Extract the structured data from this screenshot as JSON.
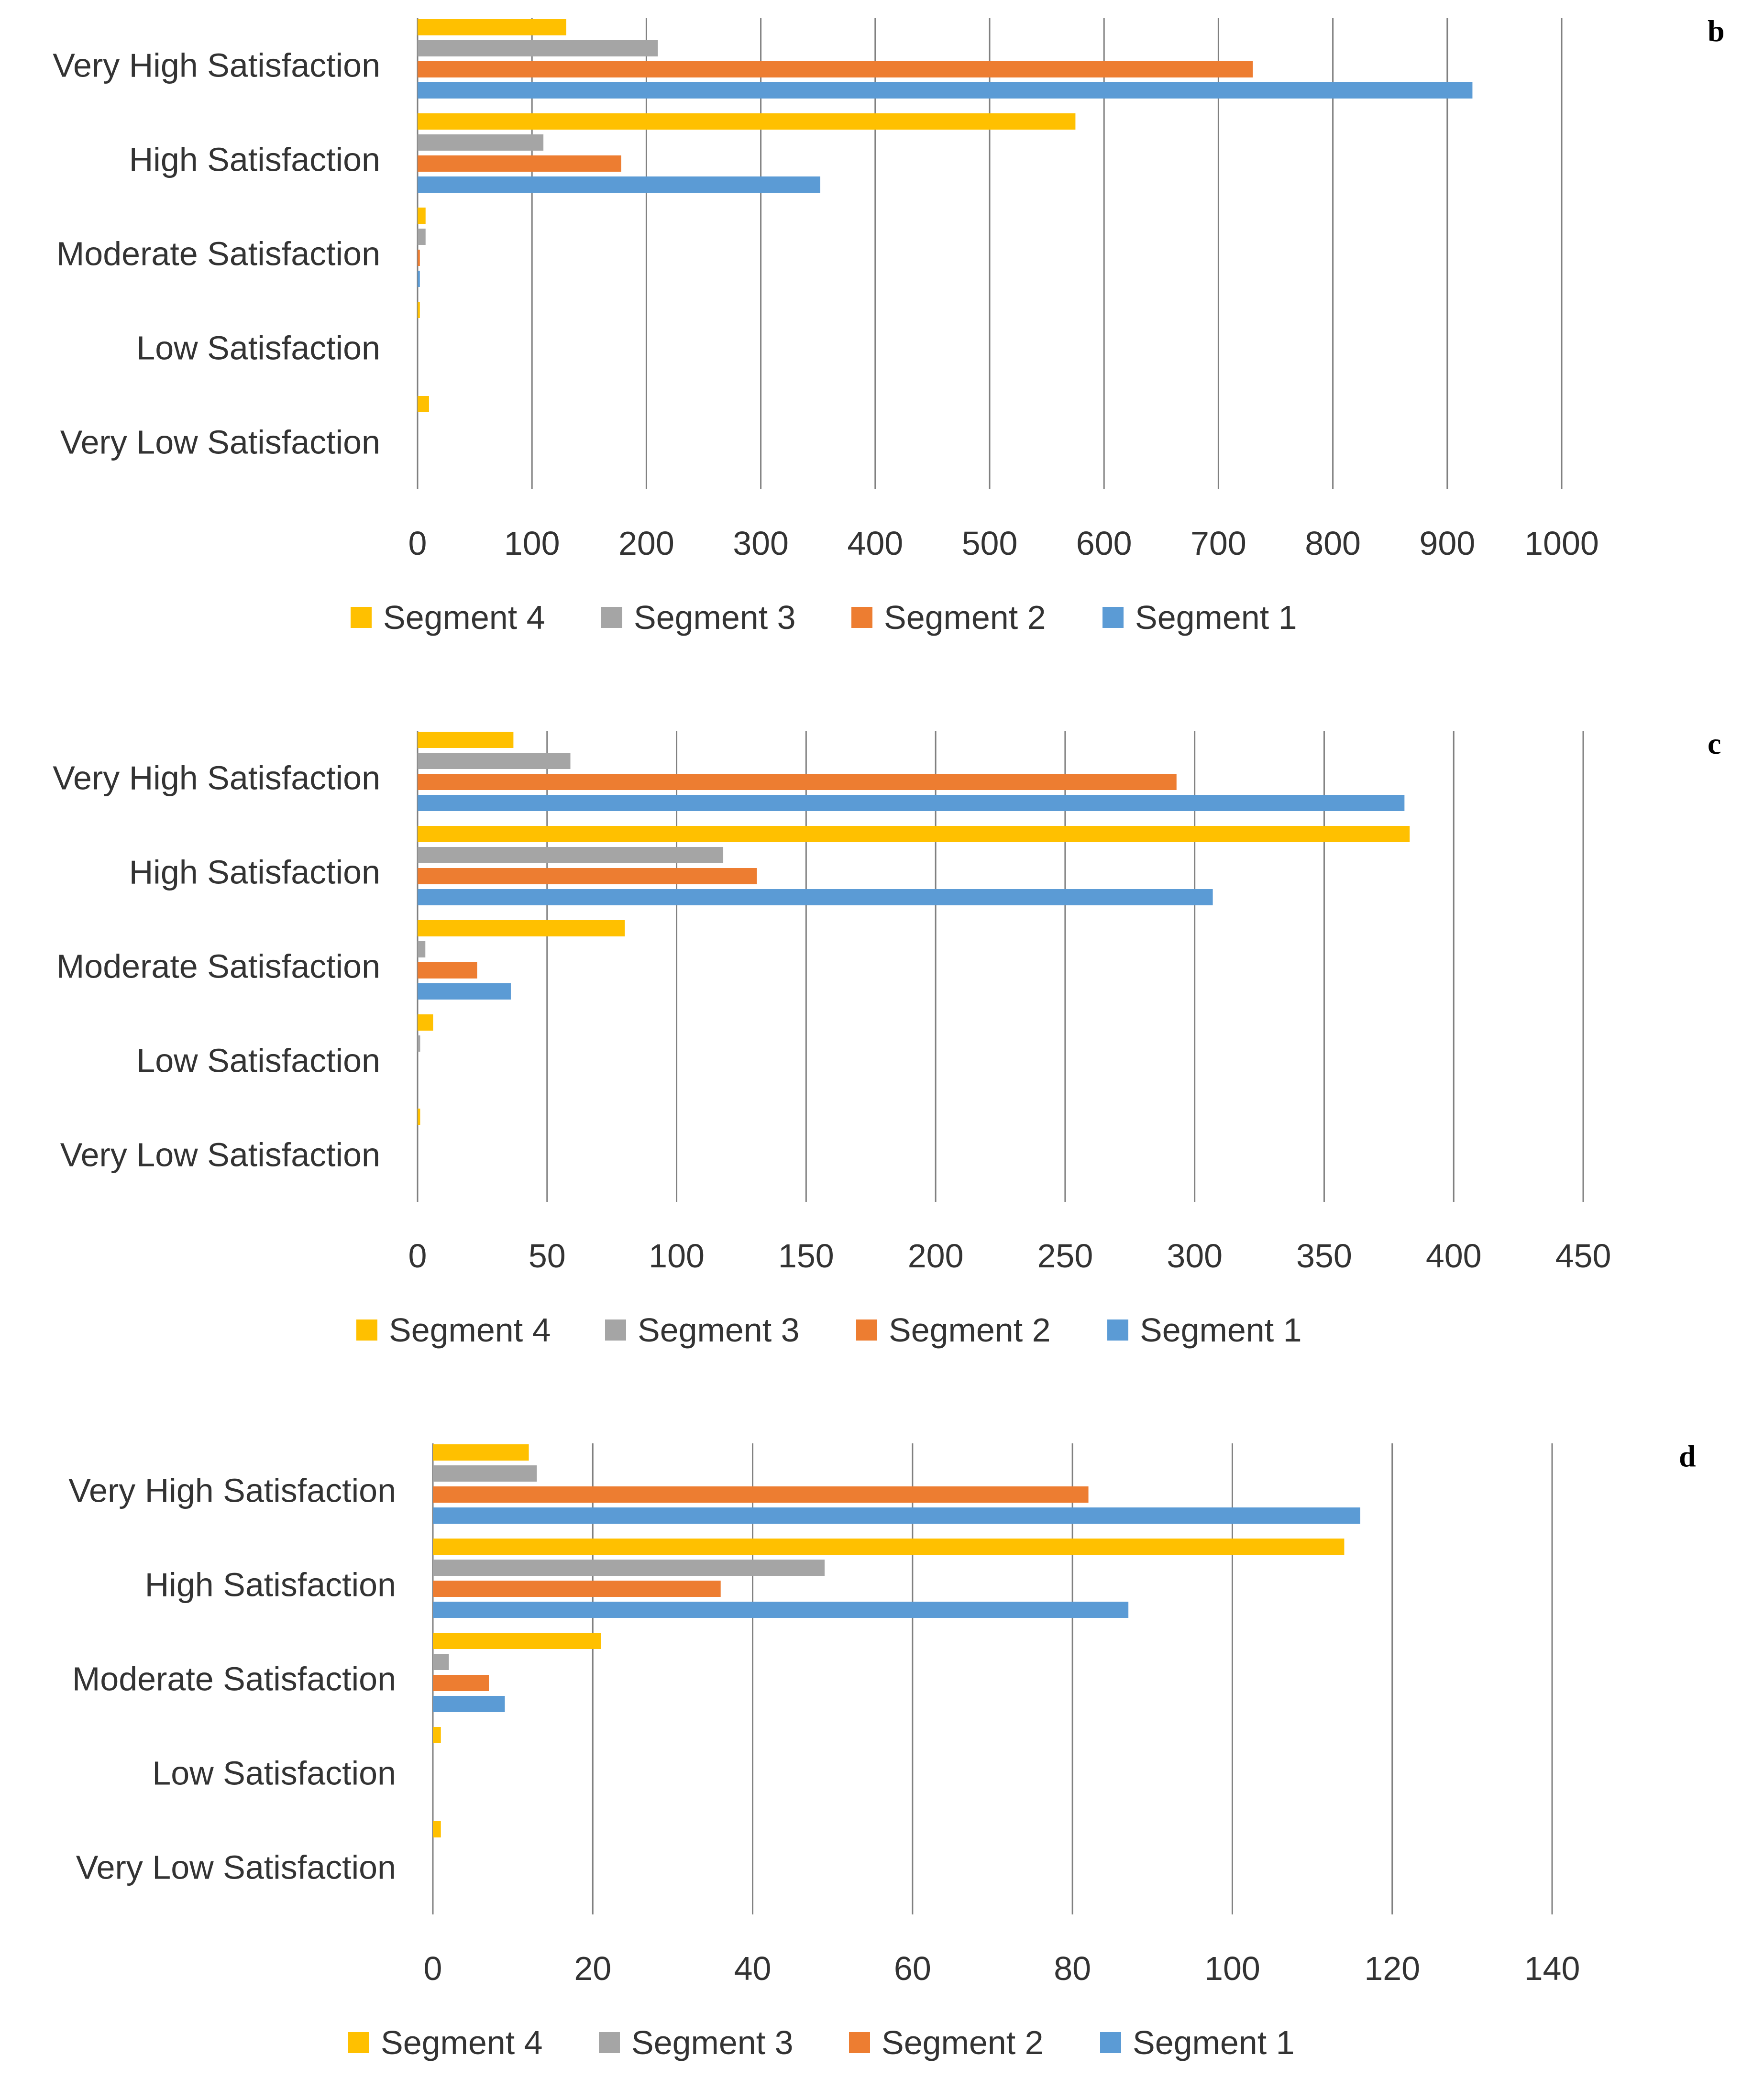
{
  "colors": {
    "segment_4": "#FFC000",
    "segment_3": "#A5A5A5",
    "segment_2": "#ED7D31",
    "segment_1": "#5B9BD5",
    "gridline": "#808080"
  },
  "chart_data": [
    {
      "type": "bar",
      "orientation": "horizontal",
      "panel_label": "b",
      "categories": [
        "Very High Satisfaction",
        "High Satisfaction",
        "Moderate Satisfaction",
        "Low Satisfaction",
        "Very Low Satisfaction"
      ],
      "series": [
        {
          "name": "Segment 4",
          "values": [
            130,
            575,
            7,
            2,
            10
          ]
        },
        {
          "name": "Segment 3",
          "values": [
            210,
            110,
            7,
            0,
            0
          ]
        },
        {
          "name": "Segment 2",
          "values": [
            730,
            178,
            2,
            0,
            0
          ]
        },
        {
          "name": "Segment 1",
          "values": [
            922,
            352,
            2,
            0,
            0
          ]
        }
      ],
      "xlim": [
        0,
        1000
      ],
      "xticks": [
        "0",
        "100",
        "200",
        "300",
        "400",
        "500",
        "600",
        "700",
        "800",
        "900",
        "1000"
      ],
      "legend": [
        "Segment 4",
        "Segment 3",
        "Segment 2",
        "Segment 1"
      ],
      "legend_position": "bottom",
      "grid": "vertical"
    },
    {
      "type": "bar",
      "orientation": "horizontal",
      "panel_label": "c",
      "categories": [
        "Very High Satisfaction",
        "High Satisfaction",
        "Moderate Satisfaction",
        "Low Satisfaction",
        "Very Low Satisfaction"
      ],
      "series": [
        {
          "name": "Segment 4",
          "values": [
            37,
            383,
            80,
            6,
            1
          ]
        },
        {
          "name": "Segment 3",
          "values": [
            59,
            118,
            3,
            1,
            0
          ]
        },
        {
          "name": "Segment 2",
          "values": [
            293,
            131,
            23,
            0,
            0
          ]
        },
        {
          "name": "Segment 1",
          "values": [
            381,
            307,
            36,
            0,
            0
          ]
        }
      ],
      "xlim": [
        0,
        450
      ],
      "xticks": [
        "0",
        "50",
        "100",
        "150",
        "200",
        "250",
        "300",
        "350",
        "400",
        "450"
      ],
      "legend": [
        "Segment 4",
        "Segment 3",
        "Segment 2",
        "Segment 1"
      ],
      "legend_position": "bottom",
      "grid": "vertical"
    },
    {
      "type": "bar",
      "orientation": "horizontal",
      "panel_label": "d",
      "categories": [
        "Very High Satisfaction",
        "High Satisfaction",
        "Moderate Satisfaction",
        "Low Satisfaction",
        "Very Low Satisfaction"
      ],
      "series": [
        {
          "name": "Segment 4",
          "values": [
            12,
            114,
            21,
            1,
            1
          ]
        },
        {
          "name": "Segment 3",
          "values": [
            13,
            49,
            2,
            0,
            0
          ]
        },
        {
          "name": "Segment 2",
          "values": [
            82,
            36,
            7,
            0,
            0
          ]
        },
        {
          "name": "Segment 1",
          "values": [
            116,
            87,
            9,
            0,
            0
          ]
        }
      ],
      "xlim": [
        0,
        140
      ],
      "xticks": [
        "0",
        "20",
        "40",
        "60",
        "80",
        "100",
        "120",
        "140"
      ],
      "legend": [
        "Segment 4",
        "Segment 3",
        "Segment 2",
        "Segment 1"
      ],
      "legend_position": "bottom",
      "grid": "vertical"
    }
  ]
}
